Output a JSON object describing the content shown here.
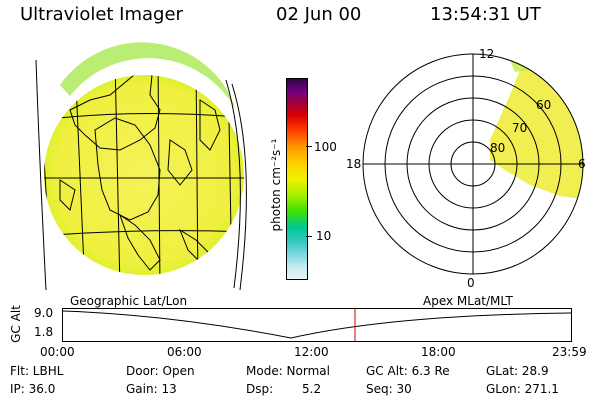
{
  "header": {
    "title": "Ultraviolet Imager",
    "date": "02 Jun 00",
    "time": "13:54:31 UT"
  },
  "colorbar": {
    "unit_label": "photon cm⁻²s⁻¹",
    "tick_100": "100",
    "tick_10": "10",
    "colors": [
      "#e8f4f8",
      "#c6ecf0",
      "#7fd8e0",
      "#3cc8c8",
      "#00c890",
      "#40e000",
      "#a8f000",
      "#f0f000",
      "#ffd000",
      "#ff9800",
      "#ff4000",
      "#d80000",
      "#a00040",
      "#700080",
      "#2a0a40"
    ]
  },
  "polar_plot": {
    "label_top": "12",
    "label_left": "18",
    "label_right": "6",
    "label_bottom": "0",
    "ring_labels": [
      "60",
      "70",
      "80"
    ]
  },
  "timeline": {
    "left_caption": "Geographic Lat/Lon",
    "right_caption": "Apex MLat/MLT",
    "ylabel": "GC Alt",
    "ytick_top": "9.0",
    "ytick_bottom": "1.8",
    "xticks": [
      "00:00",
      "06:00",
      "12:00",
      "18:00",
      "23:59"
    ],
    "marker_color": "#cc0000"
  },
  "info": {
    "flt": "Flt: LBHL",
    "ip": "IP: 36.0",
    "door": "Door: Open",
    "gain": "Gain: 13",
    "mode": "Mode: Normal",
    "dsp_label": "Dsp:",
    "dsp_value": "5.2",
    "gc_alt": "GC Alt: 6.3 Re",
    "seq": "Seq: 30",
    "glat": "GLat: 28.9",
    "glon": "GLon: 271.1"
  }
}
